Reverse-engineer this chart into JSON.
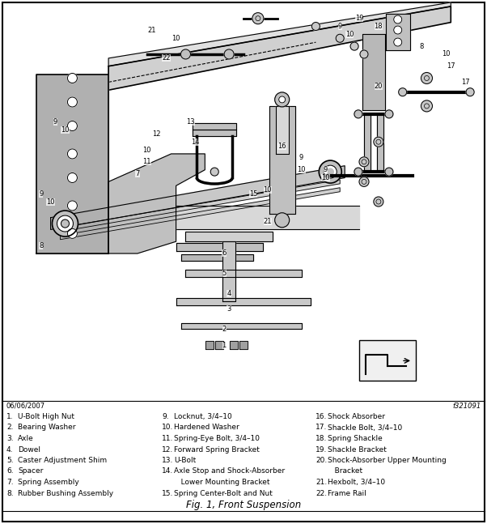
{
  "title": "Fig. 1, Front Suspension",
  "doc_number": "f321091",
  "date": "06/06/2007",
  "border_color": "#000000",
  "bg_color": "#ffffff",
  "text_color": "#000000",
  "legend_col1_items": [
    [
      "1.",
      "U-Bolt High Nut"
    ],
    [
      "2.",
      "Bearing Washer"
    ],
    [
      "3.",
      "Axle"
    ],
    [
      "4.",
      "Dowel"
    ],
    [
      "5.",
      "Caster Adjustment Shim"
    ],
    [
      "6.",
      "Spacer"
    ],
    [
      "7.",
      "Spring Assembly"
    ],
    [
      "8.",
      "Rubber Bushing Assembly"
    ]
  ],
  "legend_col2_items": [
    [
      "9.",
      "Locknut, 3/4–10"
    ],
    [
      "10.",
      "Hardened Washer"
    ],
    [
      "11.",
      "Spring-Eye Bolt, 3/4–10"
    ],
    [
      "12.",
      "Forward Spring Bracket"
    ],
    [
      "13.",
      "U-Bolt"
    ],
    [
      "14.",
      "Axle Stop and Shock-Absorber"
    ],
    [
      "",
      "   Lower Mounting Bracket"
    ],
    [
      "15.",
      "Spring Center-Bolt and Nut"
    ]
  ],
  "legend_col3_items": [
    [
      "16.",
      "Shock Absorber"
    ],
    [
      "17.",
      "Shackle Bolt, 3/4–10"
    ],
    [
      "18.",
      "Spring Shackle"
    ],
    [
      "19.",
      "Shackle Bracket"
    ],
    [
      "20.",
      "Shock-Absorber Upper Mounting"
    ],
    [
      "",
      "   Bracket"
    ],
    [
      "21.",
      "Hexbolt, 3/4–10"
    ],
    [
      "22.",
      "Frame Rail"
    ]
  ],
  "figsize": [
    6.02,
    6.47
  ],
  "dpi": 100
}
